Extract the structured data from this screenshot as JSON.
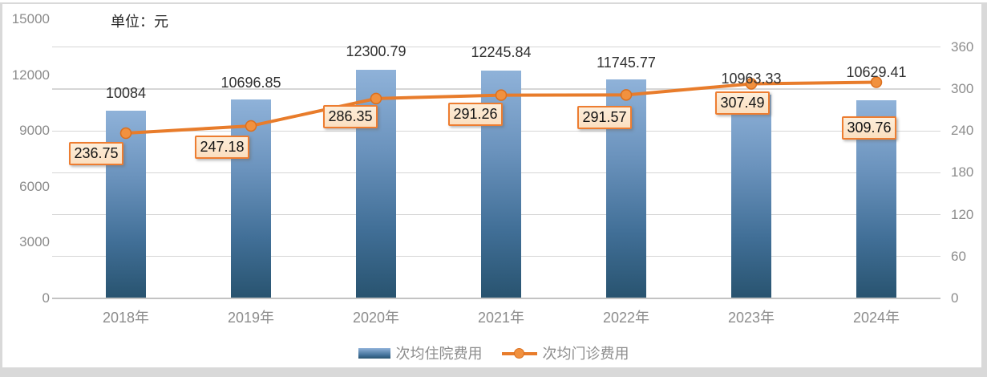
{
  "chart_data": {
    "type": "combo-bar-line",
    "title": "",
    "unit_label": "单位：元",
    "categories": [
      "2018年",
      "2019年",
      "2020年",
      "2021年",
      "2022年",
      "2023年",
      "2024年"
    ],
    "series": [
      {
        "name": "次均住院费用",
        "type": "bar",
        "axis": "left",
        "values": [
          10084,
          10696.85,
          12300.79,
          12245.84,
          11745.77,
          10963.33,
          10629.41
        ],
        "labels": [
          "10084",
          "10696.85",
          "12300.79",
          "12245.84",
          "11745.77",
          "10963.33",
          "10629.41"
        ]
      },
      {
        "name": "次均门诊费用",
        "type": "line",
        "axis": "right",
        "values": [
          236.75,
          247.18,
          286.35,
          291.26,
          291.57,
          307.49,
          309.76
        ],
        "labels": [
          "236.75",
          "247.18",
          "286.35",
          "291.26",
          "291.57",
          "307.49",
          "309.76"
        ]
      }
    ],
    "left_axis": {
      "min": 0,
      "max": 15000,
      "step": 3000,
      "ticks": [
        0,
        3000,
        6000,
        9000,
        12000,
        15000
      ]
    },
    "right_axis": {
      "min": 0,
      "max": 400,
      "step": 60,
      "ticks": [
        0,
        60,
        120,
        180,
        240,
        300,
        360
      ]
    },
    "legend": {
      "position": "bottom",
      "items": [
        "次均住院费用",
        "次均门诊费用"
      ]
    },
    "grid": true
  },
  "colors": {
    "bar_top": "#8fb2d9",
    "bar_bottom": "#28536f",
    "line": "#e87c2b",
    "marker_fill": "#f1913f",
    "marker_border": "#db6f1e",
    "label_box_fill": "#fde8d0",
    "label_box_border": "#ed7d31",
    "gridline": "#d6d6d6",
    "axis_text": "#8c8c8c",
    "value_text": "#303030",
    "frame": "#d9d9d9"
  }
}
